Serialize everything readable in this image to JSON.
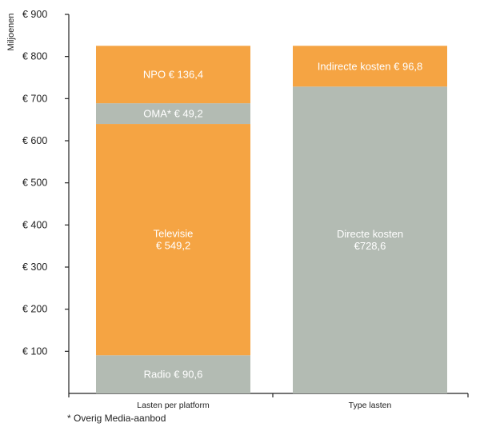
{
  "chart_data": {
    "type": "bar",
    "stacked": true,
    "ylabel": "Miljoenen",
    "ylim": [
      0,
      900
    ],
    "yticks": [
      100,
      200,
      300,
      400,
      500,
      600,
      700,
      800,
      900
    ],
    "ytick_labels": [
      "€ 100",
      "€ 200",
      "€ 300",
      "€ 400",
      "€ 500",
      "€ 600",
      "€ 700",
      "€ 800",
      "€ 900"
    ],
    "grid": false,
    "categories": [
      "Lasten per platform",
      "Type lasten"
    ],
    "bars": [
      {
        "category": "Lasten per platform",
        "segments": [
          {
            "value": 90.6,
            "label_lines": [
              "Radio € 90,6"
            ],
            "color": "#b3bbb3"
          },
          {
            "value": 549.2,
            "label_lines": [
              "Televisie",
              "€ 549,2"
            ],
            "color": "#f5a443"
          },
          {
            "value": 49.2,
            "label_lines": [
              "OMA* € 49,2"
            ],
            "color": "#b3bbb3"
          },
          {
            "value": 136.4,
            "label_lines": [
              "NPO € 136,4"
            ],
            "color": "#f5a443"
          }
        ]
      },
      {
        "category": "Type lasten",
        "segments": [
          {
            "value": 728.6,
            "label_lines": [
              "Directe kosten",
              "€728,6"
            ],
            "color": "#b3bbb3"
          },
          {
            "value": 96.8,
            "label_lines": [
              "Indirecte kosten € 96,8"
            ],
            "color": "#f5a443"
          }
        ]
      }
    ],
    "footnote": "* Overig Media-aanbod"
  }
}
